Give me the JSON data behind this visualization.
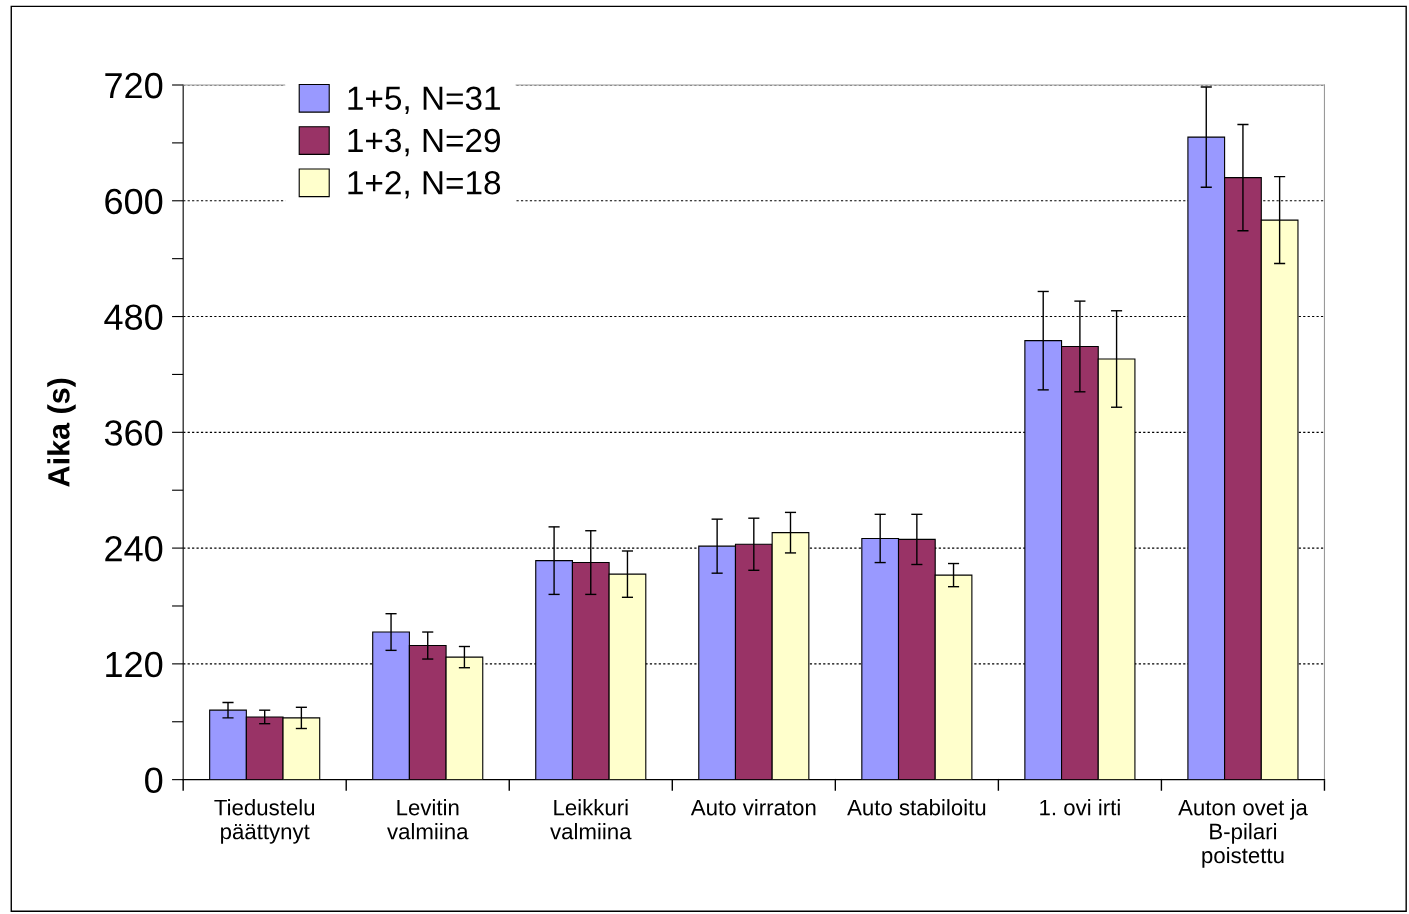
{
  "chart_data": {
    "type": "bar",
    "ylabel": "Aika (s)",
    "categories": [
      "Tiedustelu\npäättynyt",
      "Levitin\nvalmiina",
      "Leikkuri\nvalmiina",
      "Auto virraton",
      "Auto stabiloitu",
      "1. ovi irti",
      "Auton ovet ja\nB-pilari\npoistettu"
    ],
    "series": [
      {
        "name": "1+5, N=31",
        "color": "#9999ff",
        "values": [
          72,
          153,
          227,
          242,
          250,
          455,
          666
        ],
        "errors": [
          8,
          19,
          35,
          28,
          25,
          51,
          52
        ]
      },
      {
        "name": "1+3, N=29",
        "color": "#993366",
        "values": [
          65,
          139,
          225,
          244,
          249,
          449,
          624
        ],
        "errors": [
          7,
          14,
          33,
          27,
          26,
          47,
          55
        ]
      },
      {
        "name": "1+2, N=18",
        "color": "#ffffcc",
        "values": [
          64,
          127,
          213,
          256,
          212,
          436,
          580
        ],
        "errors": [
          11,
          11,
          24,
          21,
          12,
          50,
          45
        ]
      }
    ],
    "ylim": [
      0,
      720
    ],
    "yticks": [
      0,
      {
        "value": 60,
        "label": null
      },
      120,
      {
        "value": 180,
        "label": null
      },
      240,
      {
        "value": 300,
        "label": null
      },
      360,
      {
        "value": 420,
        "label": null
      },
      480,
      {
        "value": 540,
        "label": null
      },
      600,
      {
        "value": 660,
        "label": null
      },
      720
    ],
    "grid": "y",
    "legend": "top left"
  }
}
